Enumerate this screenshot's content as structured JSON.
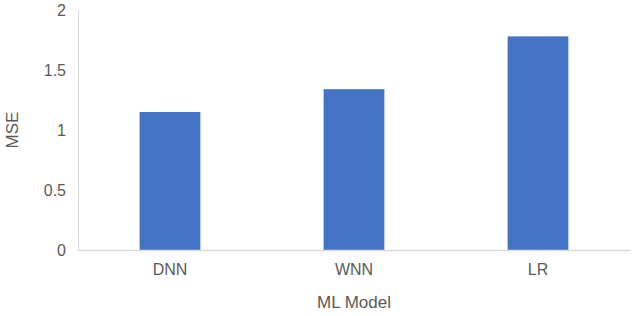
{
  "chart_data": {
    "type": "bar",
    "x_label": "ML Model",
    "y_label": "MSE",
    "categories": [
      "DNN",
      "WNN",
      "LR"
    ],
    "values": [
      1.15,
      1.34,
      1.78
    ],
    "color": "#4472c4",
    "ylim": [
      0,
      2
    ],
    "yticks": [
      0,
      0.5,
      1,
      1.5,
      2
    ],
    "grid": false
  }
}
